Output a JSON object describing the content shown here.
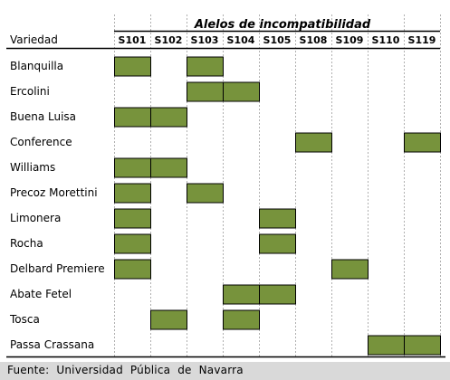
{
  "chart_data": {
    "type": "table",
    "title": "Alelos de incompatibilidad",
    "row_header": "Variedad",
    "columns": [
      "S101",
      "S102",
      "S103",
      "S104",
      "S105",
      "S108",
      "S109",
      "S110",
      "S119"
    ],
    "rows": [
      {
        "label": "Blanquilla",
        "alleles": [
          "S101",
          "S103"
        ]
      },
      {
        "label": "Ercolini",
        "alleles": [
          "S103",
          "S104"
        ]
      },
      {
        "label": "Buena Luisa",
        "alleles": [
          "S101",
          "S102"
        ]
      },
      {
        "label": "Conference",
        "alleles": [
          "S108",
          "S119"
        ]
      },
      {
        "label": "Williams",
        "alleles": [
          "S101",
          "S102"
        ]
      },
      {
        "label": "Precoz Morettini",
        "alleles": [
          "S101",
          "S103"
        ]
      },
      {
        "label": "Limonera",
        "alleles": [
          "S101",
          "S105"
        ]
      },
      {
        "label": "Rocha",
        "alleles": [
          "S101",
          "S105"
        ]
      },
      {
        "label": "Delbard Premiere",
        "alleles": [
          "S101",
          "S109"
        ]
      },
      {
        "label": "Abate Fetel",
        "alleles": [
          "S104",
          "S105"
        ]
      },
      {
        "label": "Tosca",
        "alleles": [
          "S102",
          "S104"
        ]
      },
      {
        "label": "Passa Crassana",
        "alleles": [
          "S110",
          "S119"
        ]
      }
    ],
    "fill_color": "#77933c",
    "grid": "dashed-vertical"
  },
  "footer": {
    "source": "Fuente: Universidad Pública de Navarra"
  }
}
